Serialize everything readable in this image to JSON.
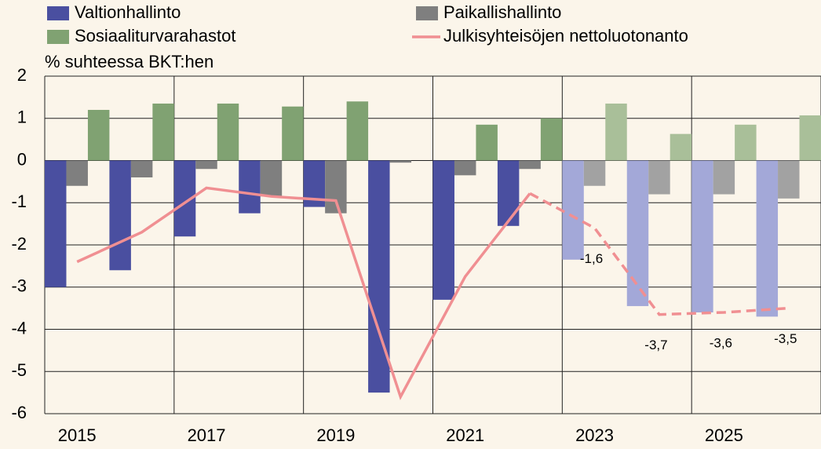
{
  "chart_data": {
    "type": "bar_line",
    "y_axis_label": "% suhteessa BKT:hen",
    "categories": [
      "2015",
      null,
      "2017",
      null,
      "2019",
      null,
      "2021",
      null,
      "2023",
      null,
      "2025",
      null
    ],
    "series": [
      {
        "name": "Valtionhallinto",
        "type": "bar",
        "color": "#4a4fa0",
        "forecast_color": "#a3a8d8",
        "values": [
          -3.0,
          -2.6,
          -1.8,
          -1.25,
          -1.1,
          -5.5,
          -3.3,
          -1.55,
          -2.35,
          -3.45,
          -3.6,
          -3.7
        ]
      },
      {
        "name": "Paikallishallinto",
        "type": "bar",
        "color": "#7f7f7f",
        "forecast_color": "#a2a2a2",
        "values": [
          -0.6,
          -0.4,
          -0.2,
          -0.85,
          -1.25,
          -0.05,
          -0.35,
          -0.2,
          -0.6,
          -0.8,
          -0.8,
          -0.9
        ]
      },
      {
        "name": "Sosiaaliturvarahastot",
        "type": "bar",
        "color": "#80a272",
        "forecast_color": "#a9bf99",
        "values": [
          1.2,
          1.35,
          1.35,
          1.28,
          1.4,
          0,
          0.85,
          1.0,
          1.35,
          0.63,
          0.85,
          1.07
        ]
      },
      {
        "name": "Julkisyhteisöjen nettoluotonanto",
        "type": "line",
        "color": "#f08f92",
        "values": [
          -2.4,
          -1.7,
          -0.65,
          -0.85,
          -0.95,
          -5.6,
          -2.75,
          -0.78,
          -1.6,
          -3.65,
          -3.6,
          -3.5
        ],
        "value_labels": [
          null,
          null,
          null,
          null,
          null,
          null,
          null,
          null,
          "-1,6",
          "-3,7",
          "-3,6",
          "-3,5"
        ]
      }
    ],
    "ylim": [
      -6,
      2
    ],
    "yticks": [
      2,
      1,
      0,
      -1,
      -2,
      -3,
      -4,
      -5,
      -6
    ],
    "grid": true
  }
}
